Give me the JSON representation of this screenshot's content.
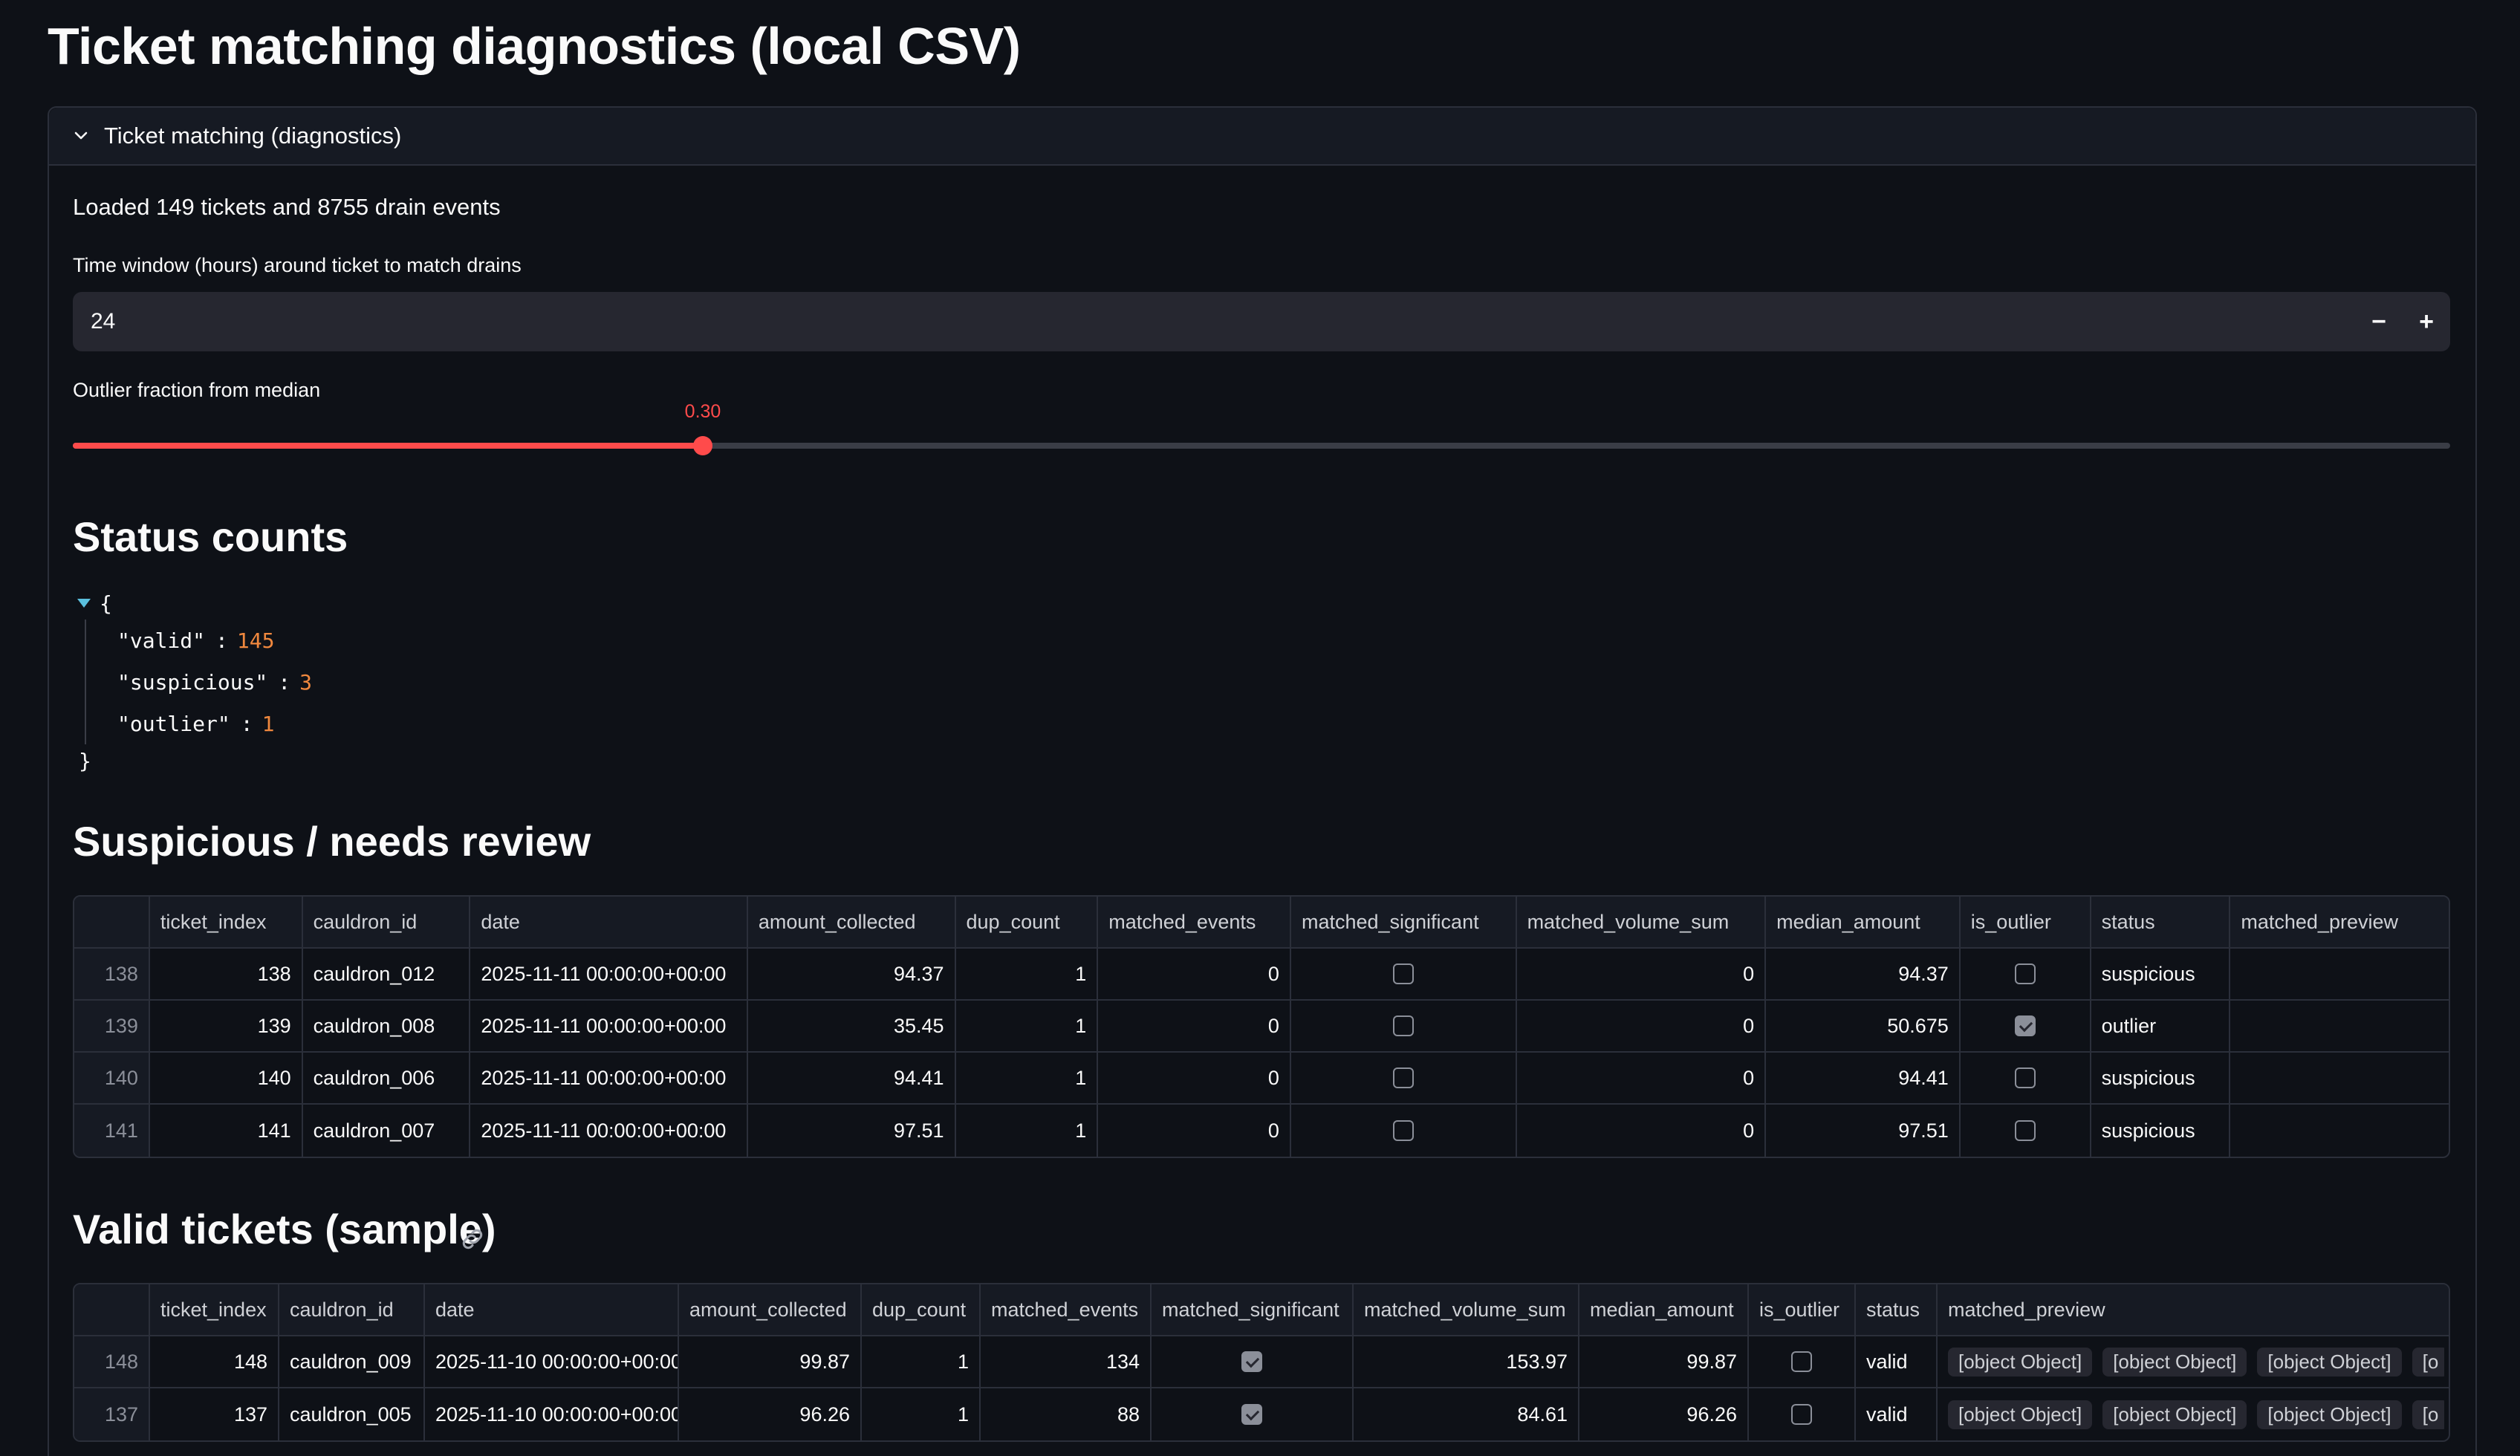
{
  "page": {
    "title": "Ticket matching diagnostics (local CSV)"
  },
  "expander": {
    "label": "Ticket matching (diagnostics)"
  },
  "loaded_text": "Loaded 149 tickets and 8755 drain events",
  "time_window": {
    "label": "Time window (hours) around ticket to match drains",
    "value": "24",
    "minus": "−",
    "plus": "+"
  },
  "outlier_slider": {
    "label": "Outlier fraction from median",
    "value_text": "0.30",
    "fraction": 0.265
  },
  "status_counts": {
    "heading": "Status counts",
    "open_brace": "{",
    "close_brace": "}",
    "entries": [
      {
        "key": "\"valid\"",
        "value": "145"
      },
      {
        "key": "\"suspicious\"",
        "value": "3"
      },
      {
        "key": "\"outlier\"",
        "value": "1"
      }
    ]
  },
  "suspicious": {
    "heading": "Suspicious / needs review",
    "columns": [
      "",
      "ticket_index",
      "cauldron_id",
      "date",
      "amount_collected",
      "dup_count",
      "matched_events",
      "matched_significant",
      "matched_volume_sum",
      "median_amount",
      "is_outlier",
      "status",
      "matched_preview"
    ],
    "rows": [
      [
        "138",
        "138",
        "cauldron_012",
        "2025-11-11 00:00:00+00:00",
        "94.37",
        "1",
        "0",
        false,
        "0",
        "94.37",
        false,
        "suspicious",
        ""
      ],
      [
        "139",
        "139",
        "cauldron_008",
        "2025-11-11 00:00:00+00:00",
        "35.45",
        "1",
        "0",
        false,
        "0",
        "50.675",
        true,
        "outlier",
        ""
      ],
      [
        "140",
        "140",
        "cauldron_006",
        "2025-11-11 00:00:00+00:00",
        "94.41",
        "1",
        "0",
        false,
        "0",
        "94.41",
        false,
        "suspicious",
        ""
      ],
      [
        "141",
        "141",
        "cauldron_007",
        "2025-11-11 00:00:00+00:00",
        "97.51",
        "1",
        "0",
        false,
        "0",
        "97.51",
        false,
        "suspicious",
        ""
      ]
    ]
  },
  "valid": {
    "heading": "Valid tickets (sample)",
    "columns": [
      "",
      "ticket_index",
      "cauldron_id",
      "date",
      "amount_collected",
      "dup_count",
      "matched_events",
      "matched_significant",
      "matched_volume_sum",
      "median_amount",
      "is_outlier",
      "status",
      "matched_preview"
    ],
    "rows": [
      [
        "148",
        "148",
        "cauldron_009",
        "2025-11-10 00:00:00+00:00",
        "99.87",
        "1",
        "134",
        true,
        "153.97",
        "99.87",
        false,
        "valid",
        [
          "[object Object]",
          "[object Object]",
          "[object Object]",
          "[o"
        ]
      ],
      [
        "137",
        "137",
        "cauldron_005",
        "2025-11-10 00:00:00+00:00",
        "96.26",
        "1",
        "88",
        true,
        "84.61",
        "96.26",
        false,
        "valid",
        [
          "[object Object]",
          "[object Object]",
          "[object Object]",
          "[o"
        ]
      ]
    ]
  },
  "colors": {
    "background": "#0e1117",
    "accent": "#ff4b4b",
    "json_number": "#f0883e"
  }
}
